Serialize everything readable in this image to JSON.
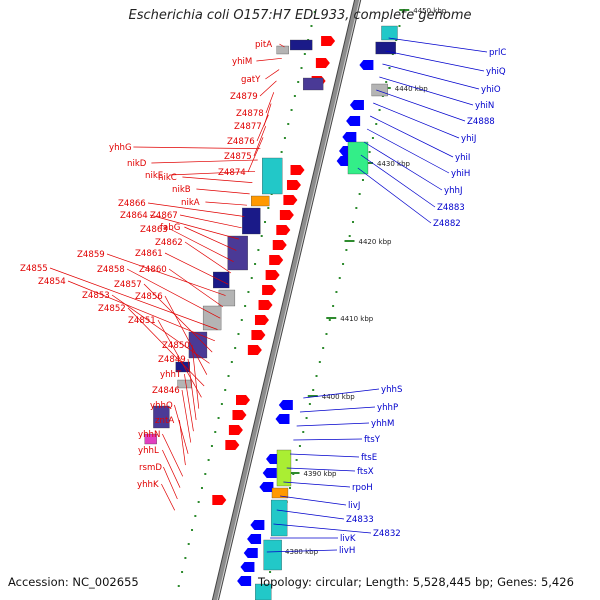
{
  "title": "Escherichia coli O157:H7 EDL933, complete genome",
  "footer": {
    "accession": "Accession: NC_002655",
    "topology": "Topology: circular; Length: 5,528,445 bp; Genes: 5,426"
  },
  "colors": {
    "left_labels": "#e00000",
    "right_labels": "#0000cc",
    "backbone": "#8c8c8c",
    "tick": "#2e8b2e",
    "forward_gene": "#ff0000",
    "reverse_gene": "#0000ff",
    "cog_teal": "#22c8c8",
    "cog_green": "#33ee88",
    "cog_orange": "#ff9900",
    "cog_navy": "#1a1a88",
    "cog_purple": "#4a3a96",
    "cog_grey": "#b4b4b4",
    "cog_magenta": "#e040c0",
    "cog_yellowgreen": "#aaee33"
  },
  "kbp_markers": [
    "4450 kbp",
    "4440 kbp",
    "4430 kbp",
    "4420 kbp",
    "4410 kbp",
    "4400 kbp",
    "4390 kbp",
    "4380 kbp"
  ],
  "left_genes": [
    "pitA",
    "yhiM",
    "gatY",
    "Z4879",
    "Z4878",
    "Z4877",
    "Z4876",
    "Z4875",
    "Z4874",
    "yhhG",
    "nikD",
    "nikE",
    "nikC",
    "nikB",
    "nikA",
    "Z4866",
    "Z4867",
    "Z4864",
    "fabG",
    "Z4863",
    "Z4862",
    "Z4861",
    "Z4859",
    "Z4860",
    "Z4858",
    "Z4855",
    "Z4854",
    "Z4857",
    "Z4853",
    "Z4856",
    "Z4852",
    "Z4851",
    "Z4850",
    "Z4849",
    "yhhT",
    "Z4846",
    "yhhQ",
    "zntA",
    "yhhN",
    "yhhL",
    "rsmD",
    "yhhK"
  ],
  "right_genes": [
    "prlC",
    "yhiQ",
    "yhiO",
    "yhiN",
    "Z4888",
    "yhiJ",
    "yhiI",
    "yhiH",
    "yhhJ",
    "Z4883",
    "Z4882",
    "yhhS",
    "yhhP",
    "yhhM",
    "ftsY",
    "ftsE",
    "ftsX",
    "rpoH",
    "livJ",
    "Z4833",
    "Z4832",
    "livK",
    "livH"
  ]
}
